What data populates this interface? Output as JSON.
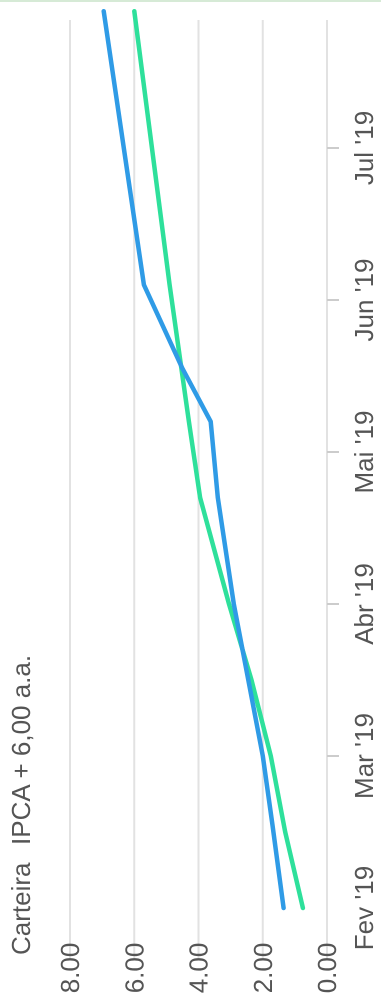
{
  "chart_data": {
    "type": "line",
    "orientation": "rotated-90-clockwise",
    "categories": [
      "Fev '19",
      "Mar '19",
      "Abr '19",
      "Mai '19",
      "Jun '19",
      "Jul '19"
    ],
    "y_ticks": [
      "0.00",
      "2.00",
      "4.00",
      "6.00",
      "8.00"
    ],
    "ylim": [
      0,
      8
    ],
    "xlim": [
      0,
      5.9
    ],
    "grid": true,
    "legend_position": "top",
    "series": [
      {
        "name": "Carteira",
        "color": "#2f9be6",
        "points": [
          [
            0,
            1.35
          ],
          [
            0.55,
            1.7
          ],
          [
            1,
            2.0
          ],
          [
            1.5,
            2.45
          ],
          [
            2,
            2.9
          ],
          [
            2.7,
            3.4
          ],
          [
            3.2,
            3.62
          ],
          [
            3.55,
            4.5
          ],
          [
            4.1,
            5.7
          ],
          [
            5.9,
            6.95
          ]
        ]
      },
      {
        "name": "IPCA + 6,00 a.a.",
        "color": "#2ee09b",
        "points": [
          [
            0,
            0.75
          ],
          [
            0.5,
            1.3
          ],
          [
            1,
            1.75
          ],
          [
            1.5,
            2.35
          ],
          [
            2,
            3.05
          ],
          [
            2.7,
            3.95
          ],
          [
            3.2,
            4.3
          ],
          [
            4.1,
            4.9
          ],
          [
            5.9,
            6.0
          ]
        ]
      }
    ]
  }
}
